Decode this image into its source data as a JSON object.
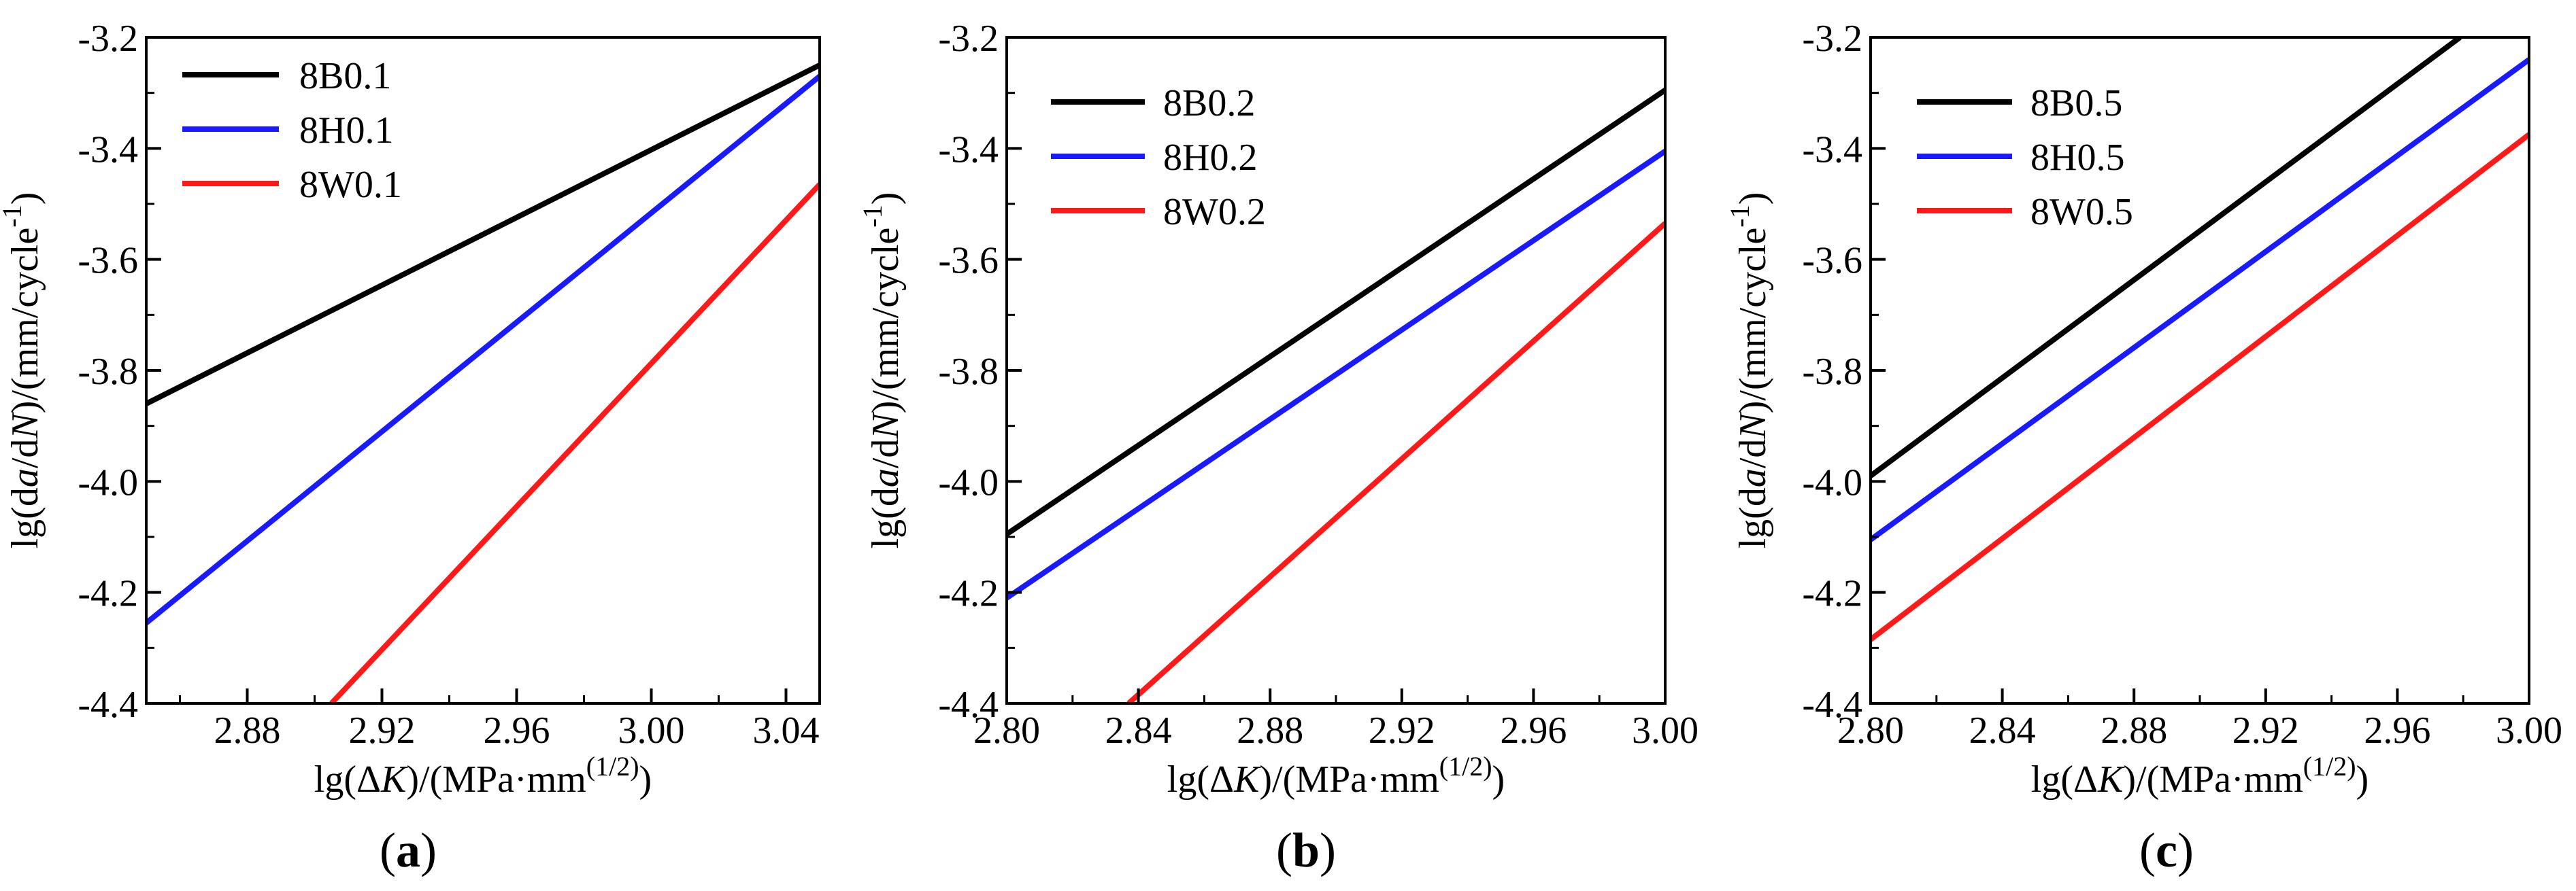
{
  "chart_data": [
    {
      "type": "line",
      "panel_label": "(a)",
      "panel_letter": "a",
      "xlabel": "lg(ΔK)/(MPa·mm^(1/2))",
      "ylabel": "lg(da/dN)/(mm/cycle^-1)",
      "xlim": [
        2.85,
        3.05
      ],
      "ylim": [
        -4.4,
        -3.2
      ],
      "xticks": [
        2.88,
        2.92,
        2.96,
        3.0,
        3.04
      ],
      "xticklabels": [
        "2.88",
        "2.92",
        "2.96",
        "3.00",
        "3.04"
      ],
      "yticks": [
        -4.4,
        -4.2,
        -4.0,
        -3.8,
        -3.6,
        -3.4,
        -3.2
      ],
      "yticklabels": [
        "-4.4",
        "-4.2",
        "-4.0",
        "-3.8",
        "-3.6",
        "-3.4",
        "-3.2"
      ],
      "legend_position": "top-left",
      "series": [
        {
          "name": "8B0.1",
          "color": "#000000",
          "x": [
            2.85,
            3.05
          ],
          "y": [
            -3.86,
            -3.25
          ]
        },
        {
          "name": "8H0.1",
          "color": "#1a1aff",
          "x": [
            2.85,
            3.05
          ],
          "y": [
            -4.255,
            -3.27
          ]
        },
        {
          "name": "8W0.1",
          "color": "#ff1a1a",
          "x": [
            2.905,
            3.05
          ],
          "y": [
            -4.4,
            -3.465
          ]
        }
      ]
    },
    {
      "type": "line",
      "panel_label": "(b)",
      "panel_letter": "b",
      "xlabel": "lg(ΔK)/(MPa·mm^(1/2))",
      "ylabel": "lg(da/dN)/(mm/cycle^-1)",
      "xlim": [
        2.8,
        3.0
      ],
      "ylim": [
        -4.4,
        -3.2
      ],
      "xticks": [
        2.8,
        2.84,
        2.88,
        2.92,
        2.96,
        3.0
      ],
      "xticklabels": [
        "2.80",
        "2.84",
        "2.88",
        "2.92",
        "2.96",
        "3.00"
      ],
      "yticks": [
        -4.4,
        -4.2,
        -4.0,
        -3.8,
        -3.6,
        -3.4,
        -3.2
      ],
      "yticklabels": [
        "-4.4",
        "-4.2",
        "-4.0",
        "-3.8",
        "-3.6",
        "-3.4",
        "-3.2"
      ],
      "legend_position": "top-left",
      "series": [
        {
          "name": "8B0.2",
          "color": "#000000",
          "x": [
            2.8,
            3.0
          ],
          "y": [
            -4.095,
            -3.295
          ]
        },
        {
          "name": "8H0.2",
          "color": "#1a1aff",
          "x": [
            2.8,
            3.0
          ],
          "y": [
            -4.21,
            -3.405
          ]
        },
        {
          "name": "8W0.2",
          "color": "#ff1a1a",
          "x": [
            2.837,
            3.0
          ],
          "y": [
            -4.4,
            -3.535
          ]
        }
      ]
    },
    {
      "type": "line",
      "panel_label": "(c)",
      "panel_letter": "c",
      "xlabel": "lg(ΔK)/(MPa·mm^(1/2))",
      "ylabel": "lg(da/dN)/(mm/cycle^-1)",
      "xlim": [
        2.8,
        3.0
      ],
      "ylim": [
        -4.4,
        -3.2
      ],
      "xticks": [
        2.8,
        2.84,
        2.88,
        2.92,
        2.96,
        3.0
      ],
      "xticklabels": [
        "2.80",
        "2.84",
        "2.88",
        "2.92",
        "2.96",
        "3.00"
      ],
      "yticks": [
        -4.4,
        -4.2,
        -4.0,
        -3.8,
        -3.6,
        -3.4,
        -3.2
      ],
      "yticklabels": [
        "-4.4",
        "-4.2",
        "-4.0",
        "-3.8",
        "-3.6",
        "-3.4",
        "-3.2"
      ],
      "legend_position": "top-left",
      "series": [
        {
          "name": "8B0.5",
          "color": "#000000",
          "x": [
            2.8,
            2.979
          ],
          "y": [
            -3.99,
            -3.2
          ]
        },
        {
          "name": "8H0.5",
          "color": "#1a1aff",
          "x": [
            2.8,
            3.0
          ],
          "y": [
            -4.105,
            -3.24
          ]
        },
        {
          "name": "8W0.5",
          "color": "#ff1a1a",
          "x": [
            2.8,
            3.0
          ],
          "y": [
            -4.285,
            -3.375
          ]
        }
      ]
    }
  ]
}
